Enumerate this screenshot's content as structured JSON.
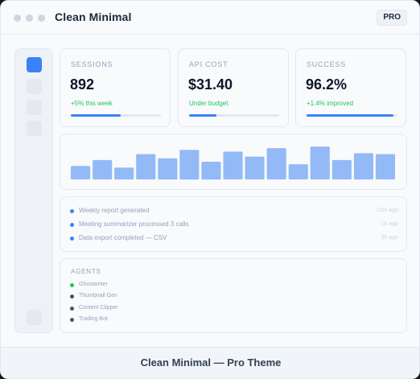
{
  "window": {
    "title": "Clean Minimal",
    "badge": "PRO",
    "footer": "Clean Minimal — Pro Theme"
  },
  "sidebar": {
    "items": [
      {
        "icon": "nav-icon-1",
        "active": true
      },
      {
        "icon": "nav-icon-2",
        "active": false
      },
      {
        "icon": "nav-icon-3",
        "active": false
      },
      {
        "icon": "nav-icon-4",
        "active": false
      },
      {
        "icon": "nav-icon-bottom",
        "active": false
      }
    ]
  },
  "stats": [
    {
      "label": "SESSIONS",
      "value": "892",
      "sub": "+5% this week",
      "progress": 0.55
    },
    {
      "label": "API COST",
      "value": "$31.40",
      "sub": "Under budget",
      "progress": 0.3
    },
    {
      "label": "SUCCESS",
      "value": "96.2%",
      "sub": "+1.4% improved",
      "progress": 0.96
    }
  ],
  "chart_data": {
    "type": "bar",
    "values": [
      16,
      23,
      14,
      30,
      25,
      35,
      21,
      33,
      27,
      37,
      18,
      39,
      23,
      31,
      30
    ],
    "ylim": [
      0,
      40
    ],
    "color": "#93b9f7"
  },
  "activity": [
    {
      "text": "Weekly report generated",
      "time": "10m ago"
    },
    {
      "text": "Meeting summarizer processed 3 calls",
      "time": "1h ago"
    },
    {
      "text": "Data export completed — CSV",
      "time": "3h ago"
    }
  ],
  "agents": {
    "title": "AGENTS",
    "items": [
      {
        "name": "Ghostwriter",
        "status_color": "#22c55e"
      },
      {
        "name": "Thumbnail Gen",
        "status_color": "#475569"
      },
      {
        "name": "Content Clipper",
        "status_color": "#475569"
      },
      {
        "name": "Trading Bot",
        "status_color": "#475569"
      }
    ]
  },
  "colors": {
    "accent": "#3b82f6",
    "positive": "#22c55e"
  }
}
